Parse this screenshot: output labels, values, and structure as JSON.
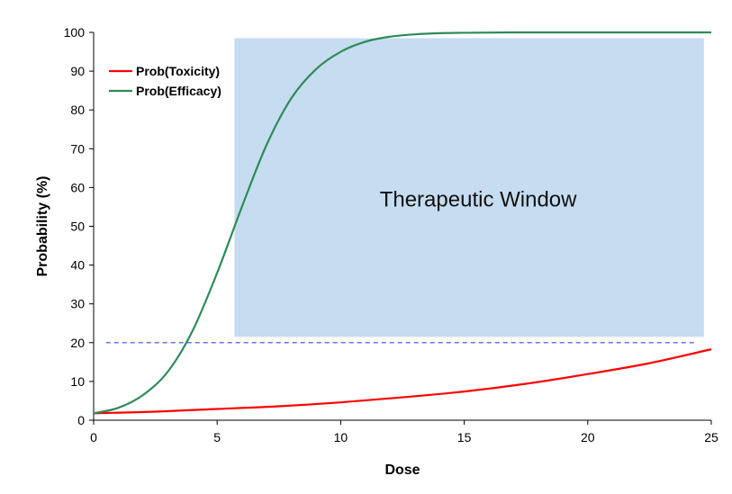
{
  "chart_data": {
    "type": "line",
    "title": "",
    "xlabel": "Dose",
    "ylabel": "Probability (%)",
    "xlim": [
      0,
      25
    ],
    "ylim": [
      0,
      100
    ],
    "x_ticks": [
      "0",
      "5",
      "10",
      "15",
      "20",
      "25"
    ],
    "y_ticks": [
      "0",
      "10",
      "20",
      "30",
      "40",
      "50",
      "60",
      "70",
      "80",
      "90",
      "100"
    ],
    "grid": false,
    "legend_position": "top-left",
    "series": [
      {
        "name": "Prob(Toxicity)",
        "color": "#ff0000",
        "x": [
          0,
          2.5,
          5,
          7.5,
          10,
          12.5,
          15,
          17.5,
          20,
          22.5,
          25
        ],
        "y": [
          1.8,
          2.2,
          2.9,
          3.6,
          4.6,
          5.9,
          7.4,
          9.4,
          11.9,
          14.7,
          18.3
        ]
      },
      {
        "name": "Prob(Efficacy)",
        "color": "#2e8b57",
        "x": [
          0,
          1,
          2,
          3,
          4,
          5,
          6,
          7,
          8,
          9,
          10,
          11,
          12,
          13,
          14,
          15,
          17,
          20,
          25
        ],
        "y": [
          1.8,
          3.2,
          6.5,
          12.5,
          23,
          38,
          55,
          71,
          83,
          90.5,
          95,
          97.6,
          98.9,
          99.5,
          99.8,
          99.9,
          100,
          100,
          100
        ]
      }
    ],
    "threshold": {
      "y": 20,
      "x_start": 0.5,
      "x_end": 24.3,
      "color": "#3344ee",
      "style": "dashed"
    },
    "window": {
      "label": "Therapeutic Window",
      "x_start": 5.7,
      "x_end": 24.7,
      "y_start": 21.5,
      "y_end": 98.5,
      "color": "#c6dcf0"
    }
  }
}
